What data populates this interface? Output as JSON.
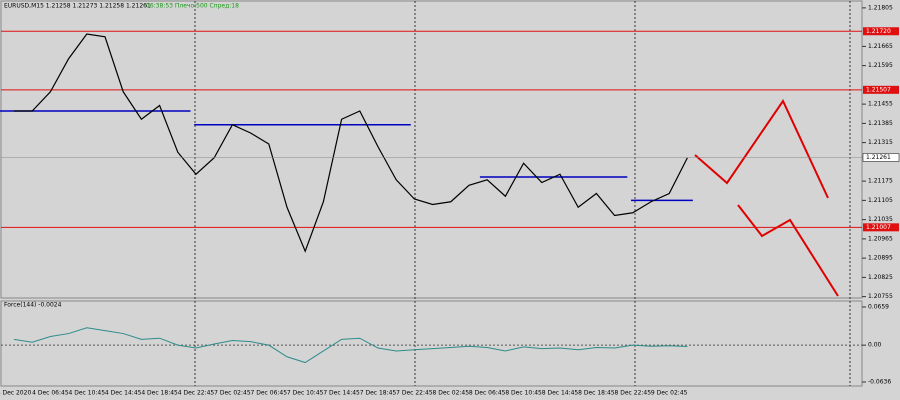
{
  "chart_data": [
    {
      "type": "line",
      "title": "EURUSD,M15  1.21258 1.21273 1.21258 1.21261",
      "subtitle": "06:38:53 Плечо:500 Спред:18",
      "categories": [
        "4 Dec 2020",
        null,
        "4 Dec 06:45",
        null,
        "4 Dec 10:45",
        null,
        "4 Dec 14:45",
        null,
        "4 Dec 18:45",
        null,
        "4 Dec 22:45",
        null,
        "7 Dec 02:45",
        null,
        "7 Dec 06:45",
        null,
        "7 Dec 10:45",
        null,
        "7 Dec 14:45",
        null,
        "7 Dec 18:45",
        null,
        "7 Dec 22:45",
        null,
        "8 Dec 02:45",
        null,
        "8 Dec 06:45",
        null,
        "8 Dec 10:45",
        null,
        "8 Dec 14:45",
        null,
        "8 Dec 18:45",
        null,
        "8 Dec 22:45",
        null,
        "9 Dec 02:45",
        null
      ],
      "series": [
        {
          "color": "#000000",
          "values": [
            1.2143,
            1.2143,
            1.215,
            1.2162,
            1.2171,
            1.217,
            1.215,
            1.214,
            1.2145,
            1.2128,
            1.212,
            1.2126,
            1.2138,
            1.2135,
            1.2131,
            1.2108,
            1.2092,
            1.211,
            1.214,
            1.2143,
            1.213,
            1.2118,
            1.2111,
            1.2109,
            1.211,
            1.2116,
            1.2118,
            1.2112,
            1.2124,
            1.2117,
            1.212,
            1.2108,
            1.2113,
            1.2105,
            1.2106,
            1.211,
            1.2113,
            1.2126
          ]
        }
      ],
      "ylim": [
        1.2075,
        1.2183
      ],
      "yticks": [
        1.21805,
        1.21665,
        1.21595,
        1.21455,
        1.21385,
        1.21315,
        1.21175,
        1.21105,
        1.21035,
        1.20965,
        1.20895,
        1.20825,
        1.20755
      ],
      "levels": [
        {
          "value": 1.2172,
          "label": "1.21720",
          "color": "#e01010"
        },
        {
          "value": 1.21507,
          "label": "1.21507",
          "color": "#e01010"
        },
        {
          "value": 1.21007,
          "label": "1.21007",
          "color": "#e01010"
        }
      ],
      "last": 1.21261,
      "segments": [
        {
          "value": 1.2143,
          "from": -0.8,
          "to": 9.7,
          "color": "#0000c0"
        },
        {
          "value": 1.2138,
          "from": 9.9,
          "to": 21.8,
          "color": "#0000c0"
        },
        {
          "value": 1.2119,
          "from": 25.6,
          "to": 33.7,
          "color": "#0000c0"
        },
        {
          "value": 1.21105,
          "from": 33.9,
          "to": 37.3,
          "color": "#0000c0"
        }
      ]
    },
    {
      "type": "line",
      "title": "Force(144) -0.0024",
      "series": [
        {
          "color": "#2e8b8b",
          "values": [
            0.01,
            0.005,
            0.015,
            0.02,
            0.03,
            0.025,
            0.02,
            0.01,
            0.012,
            0.0,
            -0.005,
            0.002,
            0.008,
            0.006,
            0.0,
            -0.02,
            -0.03,
            -0.01,
            0.01,
            0.012,
            -0.005,
            -0.01,
            -0.008,
            -0.006,
            -0.004,
            -0.002,
            -0.004,
            -0.01,
            -0.003,
            -0.006,
            -0.005,
            -0.008,
            -0.004,
            -0.005,
            0.0,
            -0.002,
            -0.001,
            -0.0024
          ]
        }
      ],
      "ylim": [
        -0.0688,
        0.0745
      ],
      "yticks": [
        0.0659,
        {
          "value": 0,
          "label": "0.00"
        },
        -0.0636
      ]
    }
  ]
}
